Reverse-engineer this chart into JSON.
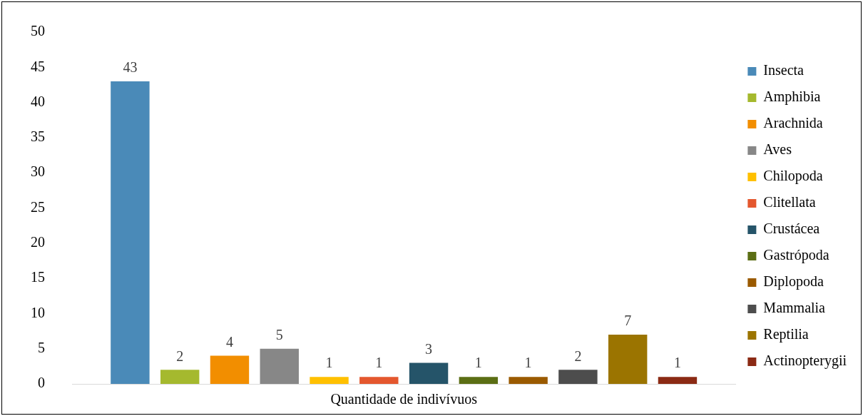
{
  "chart_data": {
    "type": "bar",
    "categories": [
      "Quantidade de indivívuos"
    ],
    "series": [
      {
        "name": "Insecta",
        "color": "#4a8ab8",
        "values": [
          43
        ]
      },
      {
        "name": "Amphibia",
        "color": "#a5b92e",
        "values": [
          2
        ]
      },
      {
        "name": "Arachnida",
        "color": "#f28e00",
        "values": [
          4
        ]
      },
      {
        "name": "Aves",
        "color": "#878787",
        "values": [
          5
        ]
      },
      {
        "name": "Chilopoda",
        "color": "#ffc000",
        "values": [
          1
        ]
      },
      {
        "name": "Clitellata",
        "color": "#e4572e",
        "values": [
          1
        ]
      },
      {
        "name": "Crustácea",
        "color": "#255469",
        "values": [
          3
        ]
      },
      {
        "name": "Gastrópoda",
        "color": "#5b6e14",
        "values": [
          1
        ]
      },
      {
        "name": "Diplopoda",
        "color": "#9a5a00",
        "values": [
          1
        ]
      },
      {
        "name": "Mammalia",
        "color": "#4d4d4d",
        "values": [
          2
        ]
      },
      {
        "name": "Reptilia",
        "color": "#9b7400",
        "values": [
          7
        ]
      },
      {
        "name": "Actinopterygii",
        "color": "#8b2a14",
        "values": [
          1
        ]
      }
    ],
    "ylim": [
      0,
      50
    ],
    "yticks": [
      0,
      5,
      10,
      15,
      20,
      25,
      30,
      35,
      40,
      45,
      50
    ],
    "grid": false,
    "legend": "right",
    "data_labels": true
  }
}
